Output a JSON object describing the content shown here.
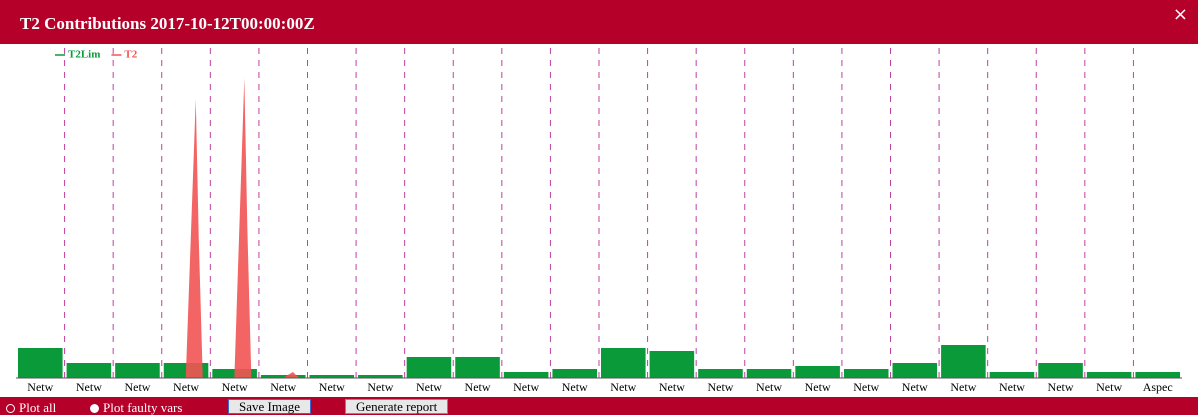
{
  "header": {
    "title": "T2 Contributions 2017-10-12T00:00:00Z",
    "close": "×"
  },
  "chart_data": {
    "type": "area",
    "categories": [
      "Netw",
      "Netw",
      "Netw",
      "Netw",
      "Netw",
      "Netw",
      "Netw",
      "Netw",
      "Netw",
      "Netw",
      "Netw",
      "Netw",
      "Netw",
      "Netw",
      "Netw",
      "Netw",
      "Netw",
      "Netw",
      "Netw",
      "Netw",
      "Netw",
      "Netw",
      "Netw",
      "Aspec"
    ],
    "series": [
      {
        "name": "T2Lim",
        "color": "#0a9a3a",
        "values": [
          10,
          5,
          5,
          5,
          3,
          1,
          1,
          1,
          7,
          7,
          2,
          3,
          10,
          9,
          3,
          3,
          4,
          3,
          5,
          11,
          2,
          5,
          2,
          2
        ]
      },
      {
        "name": "T2",
        "color": "#f25454",
        "values": [
          null,
          null,
          null,
          93,
          100,
          2,
          null,
          null,
          null,
          null,
          null,
          null,
          null,
          null,
          null,
          null,
          null,
          null,
          null,
          null,
          null,
          null,
          null,
          null
        ]
      }
    ],
    "ylim": [
      0,
      100
    ],
    "separators": true
  },
  "controls": {
    "plot_all": "Plot all",
    "plot_faulty": "Plot faulty vars",
    "save": "Save Image",
    "report": "Generate report"
  }
}
